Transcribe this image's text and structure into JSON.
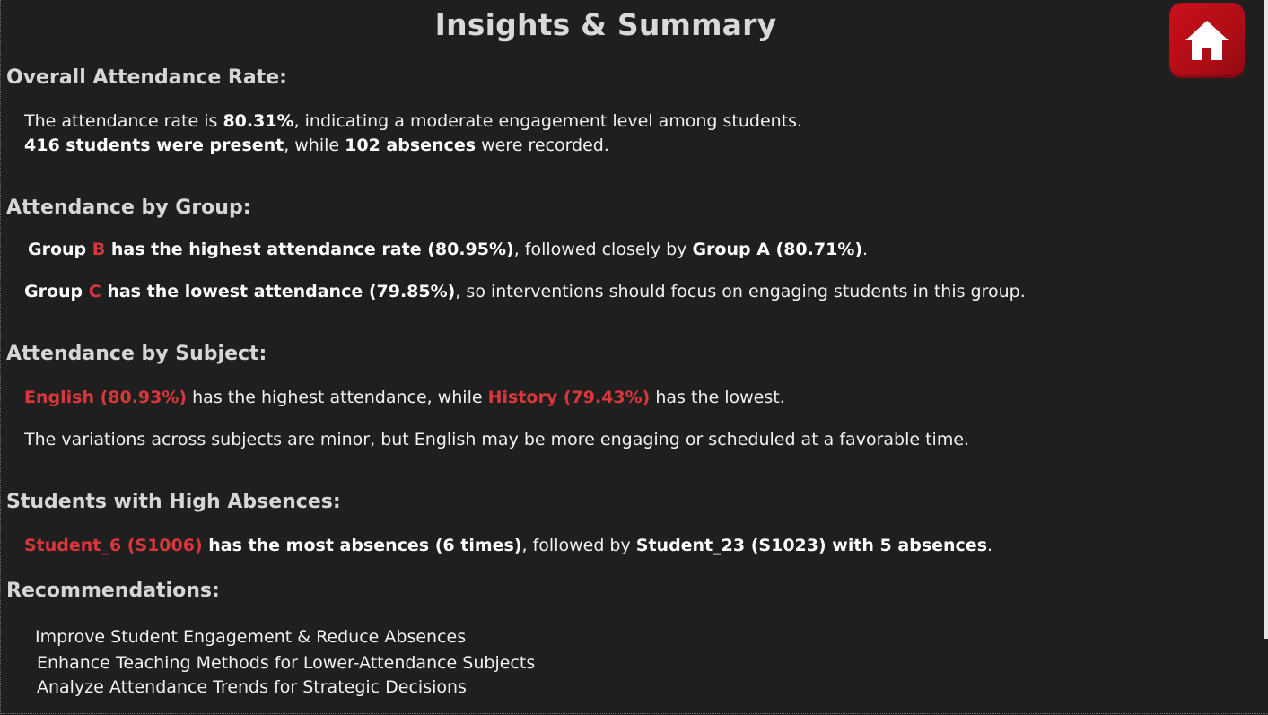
{
  "page": {
    "title": "Insights & Summary",
    "home_icon": "home-icon"
  },
  "colors": {
    "background": "#1f1f1f",
    "heading": "#d6d6d6",
    "text": "#f2f2f2",
    "accent_red": "#d9373b",
    "home_button": "#c8101c"
  },
  "overall": {
    "heading": "Overall Attendance Rate:",
    "l1_pre": "The attendance rate is ",
    "l1_rate": "80.31%",
    "l1_post": ", indicating a moderate engagement level among students.",
    "l2_present": "416 students were present",
    "l2_mid": ", while ",
    "l2_absences": "102 absences",
    "l2_post": " were recorded."
  },
  "group": {
    "heading": "Attendance by Group:",
    "l1_group": "Group ",
    "l1_letter": "B",
    "l1_bold": " has the highest attendance rate (80.95%)",
    "l1_mid": ", followed closely by ",
    "l1_second": "Group A (80.71%)",
    "l1_end": ".",
    "l2_group": "Group ",
    "l2_letter": "C",
    "l2_bold": " has the lowest attendance (79.85%)",
    "l2_post": ", so interventions should focus on engaging students in this group."
  },
  "subject": {
    "heading": "Attendance by Subject:",
    "l1_high": "English (80.93%)",
    "l1_mid": " has the highest attendance, while ",
    "l1_low": "History (79.43%)",
    "l1_post": " has the lowest.",
    "l2": "The variations across subjects are minor, but English may be more engaging or scheduled at a favorable time."
  },
  "absences": {
    "heading": "Students with High Absences:",
    "l1_student": "Student_6 (S1006)",
    "l1_bold": " has the most absences (6 times)",
    "l1_mid": ", followed by ",
    "l1_second": "Student_23 (S1023) with 5 absences",
    "l1_end": "."
  },
  "recommendations": {
    "heading": "Recommendations:",
    "items": [
      "Improve Student Engagement & Reduce Absences",
      "Enhance Teaching Methods for Lower-Attendance Subjects",
      "Analyze Attendance Trends for Strategic Decisions"
    ]
  }
}
